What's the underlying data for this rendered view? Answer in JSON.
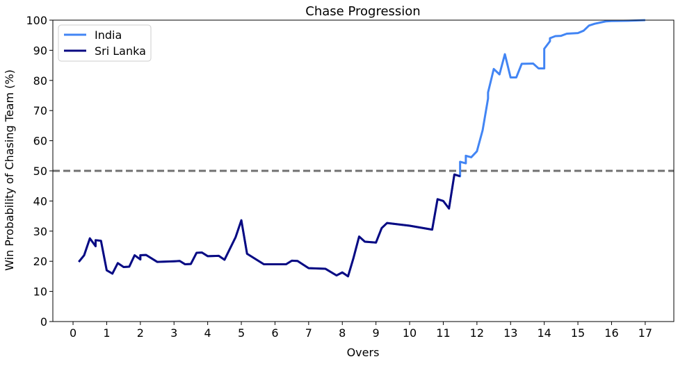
{
  "chart_data": {
    "type": "line",
    "title": "Chase Progression",
    "xlabel": "Overs",
    "ylabel": "Win Probability of Chasing Team (%)",
    "xlim": [
      -0.6,
      17.85
    ],
    "ylim": [
      0,
      100
    ],
    "xticks": [
      0,
      1,
      2,
      3,
      4,
      5,
      6,
      7,
      8,
      9,
      10,
      11,
      12,
      13,
      14,
      15,
      16,
      17
    ],
    "yticks": [
      0,
      10,
      20,
      30,
      40,
      50,
      60,
      70,
      80,
      90,
      100
    ],
    "grid": false,
    "legend_position": "top-left",
    "reference_line": {
      "y": 50,
      "style": "dashed",
      "color": "#707070"
    },
    "series": [
      {
        "name": "India",
        "color": "#4285f4",
        "points": [
          [
            0.17,
            19.8
          ],
          [
            0.33,
            22.0
          ],
          [
            0.5,
            27.6
          ],
          [
            0.67,
            25.0
          ],
          [
            0.67,
            27.0
          ],
          [
            0.83,
            26.8
          ],
          [
            1.0,
            17.0
          ],
          [
            1.17,
            15.9
          ],
          [
            1.33,
            19.4
          ],
          [
            1.5,
            18.1
          ],
          [
            1.67,
            18.2
          ],
          [
            1.83,
            22.0
          ],
          [
            2.0,
            20.6
          ],
          [
            2.0,
            22.0
          ],
          [
            2.17,
            22.1
          ],
          [
            2.5,
            19.8
          ],
          [
            3.0,
            20.0
          ],
          [
            3.17,
            20.1
          ],
          [
            3.33,
            19.0
          ],
          [
            3.5,
            19.1
          ],
          [
            3.67,
            22.8
          ],
          [
            3.83,
            22.9
          ],
          [
            4.0,
            21.7
          ],
          [
            4.33,
            21.8
          ],
          [
            4.5,
            20.5
          ],
          [
            4.83,
            28.0
          ],
          [
            5.0,
            33.6
          ],
          [
            5.17,
            22.5
          ],
          [
            5.67,
            19.0
          ],
          [
            6.0,
            19.0
          ],
          [
            6.33,
            19.0
          ],
          [
            6.5,
            20.2
          ],
          [
            6.67,
            20.1
          ],
          [
            7.0,
            17.7
          ],
          [
            7.5,
            17.5
          ],
          [
            7.83,
            15.3
          ],
          [
            8.0,
            16.3
          ],
          [
            8.17,
            15.0
          ],
          [
            8.33,
            21.0
          ],
          [
            8.5,
            28.2
          ],
          [
            8.67,
            26.5
          ],
          [
            9.0,
            26.2
          ],
          [
            9.17,
            31.0
          ],
          [
            9.33,
            32.7
          ],
          [
            10.0,
            31.8
          ],
          [
            10.67,
            30.5
          ],
          [
            10.83,
            40.6
          ],
          [
            11.0,
            40.0
          ],
          [
            11.17,
            37.5
          ],
          [
            11.33,
            48.8
          ],
          [
            11.5,
            48.2
          ],
          [
            11.5,
            53.0
          ],
          [
            11.67,
            52.5
          ],
          [
            11.67,
            55.0
          ],
          [
            11.83,
            54.5
          ],
          [
            12.0,
            56.5
          ],
          [
            12.17,
            63.5
          ],
          [
            12.33,
            74.0
          ],
          [
            12.33,
            76.0
          ],
          [
            12.5,
            83.8
          ],
          [
            12.67,
            82.0
          ],
          [
            12.83,
            88.7
          ],
          [
            13.0,
            81.0
          ],
          [
            13.17,
            81.0
          ],
          [
            13.33,
            85.5
          ],
          [
            13.67,
            85.6
          ],
          [
            13.83,
            84.0
          ],
          [
            14.0,
            84.0
          ],
          [
            14.0,
            90.5
          ],
          [
            14.17,
            93.0
          ],
          [
            14.17,
            94.0
          ],
          [
            14.33,
            94.7
          ],
          [
            14.5,
            94.8
          ],
          [
            14.67,
            95.5
          ],
          [
            15.0,
            95.7
          ],
          [
            15.17,
            96.5
          ],
          [
            15.33,
            98.2
          ],
          [
            15.5,
            98.8
          ],
          [
            15.83,
            99.6
          ],
          [
            16.0,
            99.7
          ],
          [
            16.5,
            99.8
          ],
          [
            17.0,
            100.0
          ]
        ]
      },
      {
        "name": "Sri Lanka",
        "color": "#0a0a82",
        "points": [
          [
            0.17,
            19.8
          ],
          [
            0.33,
            22.0
          ],
          [
            0.5,
            27.6
          ],
          [
            0.67,
            25.0
          ],
          [
            0.67,
            27.0
          ],
          [
            0.83,
            26.8
          ],
          [
            1.0,
            17.0
          ],
          [
            1.17,
            15.9
          ],
          [
            1.33,
            19.4
          ],
          [
            1.5,
            18.1
          ],
          [
            1.67,
            18.2
          ],
          [
            1.83,
            22.0
          ],
          [
            2.0,
            20.6
          ],
          [
            2.0,
            22.0
          ],
          [
            2.17,
            22.1
          ],
          [
            2.5,
            19.8
          ],
          [
            3.0,
            20.0
          ],
          [
            3.17,
            20.1
          ],
          [
            3.33,
            19.0
          ],
          [
            3.5,
            19.1
          ],
          [
            3.67,
            22.8
          ],
          [
            3.83,
            22.9
          ],
          [
            4.0,
            21.7
          ],
          [
            4.33,
            21.8
          ],
          [
            4.5,
            20.5
          ],
          [
            4.83,
            28.0
          ],
          [
            5.0,
            33.6
          ],
          [
            5.17,
            22.5
          ],
          [
            5.67,
            19.0
          ],
          [
            6.0,
            19.0
          ],
          [
            6.33,
            19.0
          ],
          [
            6.5,
            20.2
          ],
          [
            6.67,
            20.1
          ],
          [
            7.0,
            17.7
          ],
          [
            7.5,
            17.5
          ],
          [
            7.83,
            15.3
          ],
          [
            8.0,
            16.3
          ],
          [
            8.17,
            15.0
          ],
          [
            8.33,
            21.0
          ],
          [
            8.5,
            28.2
          ],
          [
            8.67,
            26.5
          ],
          [
            9.0,
            26.2
          ],
          [
            9.17,
            31.0
          ],
          [
            9.33,
            32.7
          ],
          [
            10.0,
            31.8
          ],
          [
            10.67,
            30.5
          ],
          [
            10.83,
            40.6
          ],
          [
            11.0,
            40.0
          ],
          [
            11.17,
            37.5
          ],
          [
            11.33,
            48.8
          ],
          [
            11.5,
            48.2
          ]
        ]
      }
    ]
  }
}
